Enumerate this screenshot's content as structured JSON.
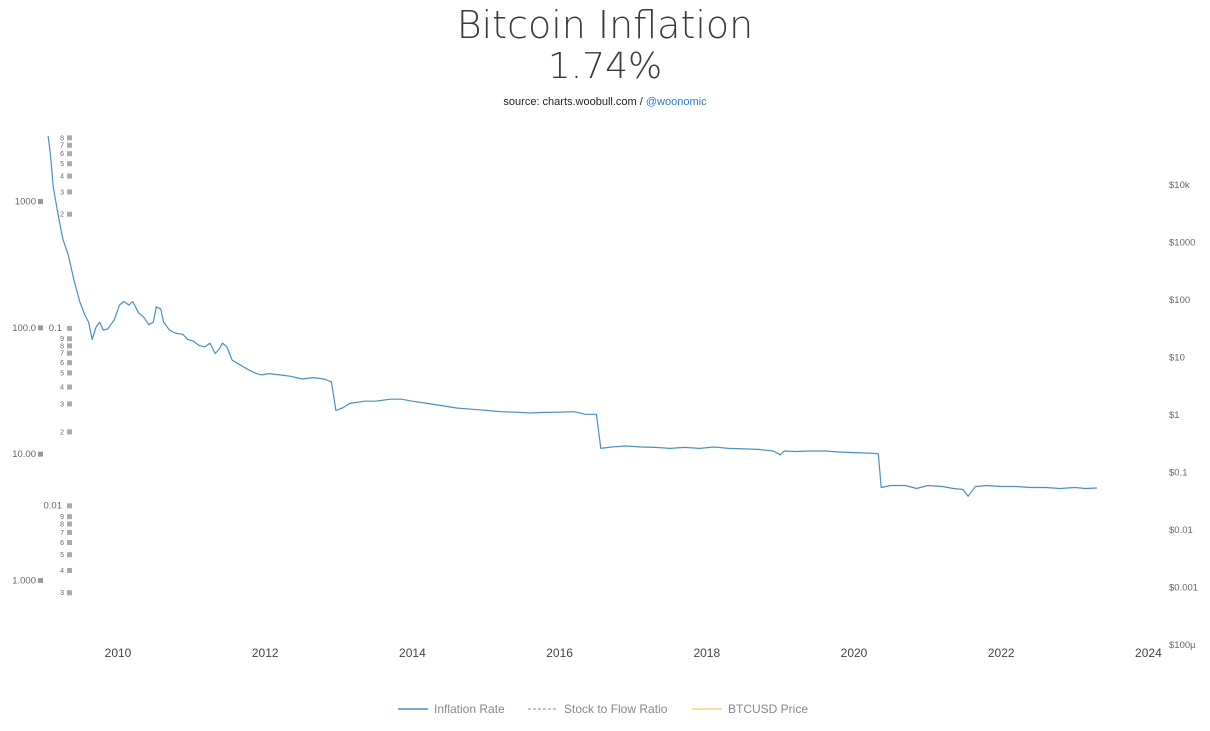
{
  "header": {
    "title": "Bitcoin Inflation",
    "value": "1.74%",
    "source_prefix": "source: charts.woobull.com / ",
    "source_handle": "@woonomic"
  },
  "colors": {
    "inflation": "#4a90c2",
    "stock_to_flow": "#b0b0b0",
    "price": "#f5d27a",
    "axis_text": "#666666"
  },
  "chart_data": {
    "type": "line",
    "title": "Bitcoin Inflation",
    "subtitle": "1.74%",
    "x_ticks": [
      "2010",
      "2012",
      "2014",
      "2016",
      "2018",
      "2020",
      "2022",
      "2024"
    ],
    "xlim": [
      2009.0,
      2024.0
    ],
    "y_left_major": [
      "1000",
      "100.0",
      "10.00",
      "1.000"
    ],
    "y_left_major_values": [
      1000,
      100,
      10,
      1
    ],
    "y_left_ylim": [
      0.33,
      3800
    ],
    "y_inner_labels": [
      {
        "label": "8",
        "v": 3190
      },
      {
        "label": "7",
        "v": 2790
      },
      {
        "label": "6",
        "v": 2390
      },
      {
        "label": "5",
        "v": 1990
      },
      {
        "label": "4",
        "v": 1590
      },
      {
        "label": "3",
        "v": 1190
      },
      {
        "label": "2",
        "v": 793
      },
      {
        "label": "0.1",
        "v": 99
      },
      {
        "label": "9",
        "v": 82
      },
      {
        "label": "8",
        "v": 72
      },
      {
        "label": "7",
        "v": 63
      },
      {
        "label": "6",
        "v": 53
      },
      {
        "label": "5",
        "v": 44
      },
      {
        "label": "4",
        "v": 34
      },
      {
        "label": "3",
        "v": 25
      },
      {
        "label": "2",
        "v": 15
      },
      {
        "label": "0.01",
        "v": 3.9
      },
      {
        "label": "9",
        "v": 3.2
      },
      {
        "label": "8",
        "v": 2.8
      },
      {
        "label": "7",
        "v": 2.4
      },
      {
        "label": "6",
        "v": 2.0
      },
      {
        "label": "5",
        "v": 1.6
      },
      {
        "label": "4",
        "v": 1.2
      },
      {
        "label": "3",
        "v": 0.8
      }
    ],
    "y_right_ticks": [
      "$10k",
      "$1000",
      "$100",
      "$10",
      "$1",
      "$0.1",
      "$0.01",
      "$0.001",
      "$100µ"
    ],
    "y_right_values": [
      10000,
      1000,
      100,
      10,
      1,
      0.1,
      0.01,
      0.001,
      0.0001
    ],
    "y_right_ylim": [
      0.0001,
      10000
    ],
    "series": [
      {
        "name": "Inflation Rate",
        "unit": "%",
        "points": [
          [
            2009.05,
            3800
          ],
          [
            2009.08,
            2400
          ],
          [
            2009.12,
            1300
          ],
          [
            2009.18,
            820
          ],
          [
            2009.25,
            500
          ],
          [
            2009.32,
            380
          ],
          [
            2009.4,
            240
          ],
          [
            2009.48,
            160
          ],
          [
            2009.55,
            125
          ],
          [
            2009.6,
            110
          ],
          [
            2009.65,
            80
          ],
          [
            2009.7,
            100
          ],
          [
            2009.75,
            110
          ],
          [
            2009.8,
            95
          ],
          [
            2009.86,
            97
          ],
          [
            2009.95,
            115
          ],
          [
            2010.02,
            150
          ],
          [
            2010.08,
            160
          ],
          [
            2010.15,
            150
          ],
          [
            2010.2,
            160
          ],
          [
            2010.28,
            130
          ],
          [
            2010.35,
            120
          ],
          [
            2010.42,
            105
          ],
          [
            2010.48,
            110
          ],
          [
            2010.52,
            145
          ],
          [
            2010.58,
            140
          ],
          [
            2010.62,
            110
          ],
          [
            2010.7,
            95
          ],
          [
            2010.78,
            90
          ],
          [
            2010.88,
            88
          ],
          [
            2010.95,
            80
          ],
          [
            2011.02,
            78
          ],
          [
            2011.1,
            72
          ],
          [
            2011.18,
            70
          ],
          [
            2011.25,
            75
          ],
          [
            2011.32,
            62
          ],
          [
            2011.38,
            68
          ],
          [
            2011.42,
            75
          ],
          [
            2011.48,
            70
          ],
          [
            2011.55,
            55
          ],
          [
            2011.62,
            52
          ],
          [
            2011.75,
            47
          ],
          [
            2011.88,
            43
          ],
          [
            2011.95,
            42
          ],
          [
            2012.05,
            43
          ],
          [
            2012.2,
            42
          ],
          [
            2012.35,
            41
          ],
          [
            2012.5,
            39
          ],
          [
            2012.65,
            40
          ],
          [
            2012.8,
            39
          ],
          [
            2012.9,
            37
          ],
          [
            2012.96,
            22
          ],
          [
            2013.05,
            23
          ],
          [
            2013.15,
            25
          ],
          [
            2013.35,
            26
          ],
          [
            2013.5,
            26
          ],
          [
            2013.7,
            27
          ],
          [
            2013.85,
            27
          ],
          [
            2014.0,
            26
          ],
          [
            2014.2,
            25
          ],
          [
            2014.4,
            24
          ],
          [
            2014.6,
            23
          ],
          [
            2014.8,
            22.5
          ],
          [
            2015.0,
            22
          ],
          [
            2015.2,
            21.5
          ],
          [
            2015.4,
            21.3
          ],
          [
            2015.6,
            21
          ],
          [
            2015.8,
            21.2
          ],
          [
            2016.0,
            21.3
          ],
          [
            2016.2,
            21.5
          ],
          [
            2016.35,
            20.5
          ],
          [
            2016.5,
            20.5
          ],
          [
            2016.56,
            11
          ],
          [
            2016.7,
            11.3
          ],
          [
            2016.9,
            11.5
          ],
          [
            2017.1,
            11.3
          ],
          [
            2017.3,
            11.2
          ],
          [
            2017.5,
            11.0
          ],
          [
            2017.7,
            11.2
          ],
          [
            2017.9,
            11.0
          ],
          [
            2018.1,
            11.3
          ],
          [
            2018.3,
            11.0
          ],
          [
            2018.5,
            10.9
          ],
          [
            2018.7,
            10.8
          ],
          [
            2018.9,
            10.5
          ],
          [
            2019.0,
            9.8
          ],
          [
            2019.05,
            10.5
          ],
          [
            2019.2,
            10.4
          ],
          [
            2019.4,
            10.5
          ],
          [
            2019.6,
            10.5
          ],
          [
            2019.8,
            10.3
          ],
          [
            2020.0,
            10.2
          ],
          [
            2020.2,
            10.1
          ],
          [
            2020.33,
            10.0
          ],
          [
            2020.37,
            5.4
          ],
          [
            2020.5,
            5.6
          ],
          [
            2020.7,
            5.6
          ],
          [
            2020.85,
            5.3
          ],
          [
            2021.0,
            5.6
          ],
          [
            2021.2,
            5.5
          ],
          [
            2021.35,
            5.3
          ],
          [
            2021.48,
            5.2
          ],
          [
            2021.55,
            4.6
          ],
          [
            2021.65,
            5.5
          ],
          [
            2021.8,
            5.6
          ],
          [
            2022.0,
            5.5
          ],
          [
            2022.2,
            5.5
          ],
          [
            2022.4,
            5.4
          ],
          [
            2022.6,
            5.4
          ],
          [
            2022.8,
            5.3
          ],
          [
            2023.0,
            5.4
          ],
          [
            2023.15,
            5.3
          ],
          [
            2023.3,
            5.35
          ]
        ]
      },
      {
        "name": "Stock to Flow Ratio",
        "points": []
      },
      {
        "name": "BTCUSD Price",
        "points": []
      }
    ],
    "legend": [
      "Inflation Rate",
      "Stock to Flow Ratio",
      "BTCUSD Price"
    ],
    "legend_position": "bottom-center"
  }
}
